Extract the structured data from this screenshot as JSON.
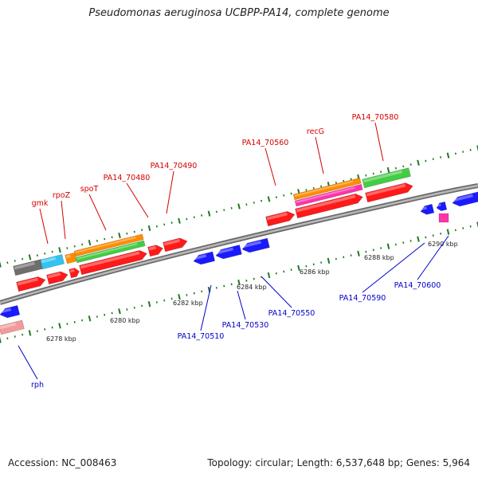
{
  "title": "Pseudomonas aeruginosa UCBPP-PA14, complete genome",
  "footer": {
    "accession": "Accession: NC_008463",
    "summary": "Topology: circular; Length: 6,537,648 bp; Genes: 5,964"
  },
  "colors": {
    "backbone": "#8a8a8a",
    "forward_label": "#d40000",
    "reverse_label": "#0000cc",
    "tick": "#1f7a1f",
    "scale_text": "#222222"
  },
  "scale_labels": [
    "6278 kbp",
    "6280 kbp",
    "6282 kbp",
    "6284 kbp",
    "6286 kbp",
    "6288 kbp",
    "6290 kbp"
  ],
  "forward_genes": [
    {
      "label": "gmk"
    },
    {
      "label": "rpoZ"
    },
    {
      "label": "spoT"
    },
    {
      "label": "PA14_70480"
    },
    {
      "label": "PA14_70490"
    },
    {
      "label": "PA14_70560"
    },
    {
      "label": "recG"
    },
    {
      "label": "PA14_70580"
    }
  ],
  "reverse_genes": [
    {
      "label": "rph"
    },
    {
      "label": "PA14_70510"
    },
    {
      "label": "PA14_70530"
    },
    {
      "label": "PA14_70550"
    },
    {
      "label": "PA14_70590"
    },
    {
      "label": "PA14_70600"
    }
  ]
}
